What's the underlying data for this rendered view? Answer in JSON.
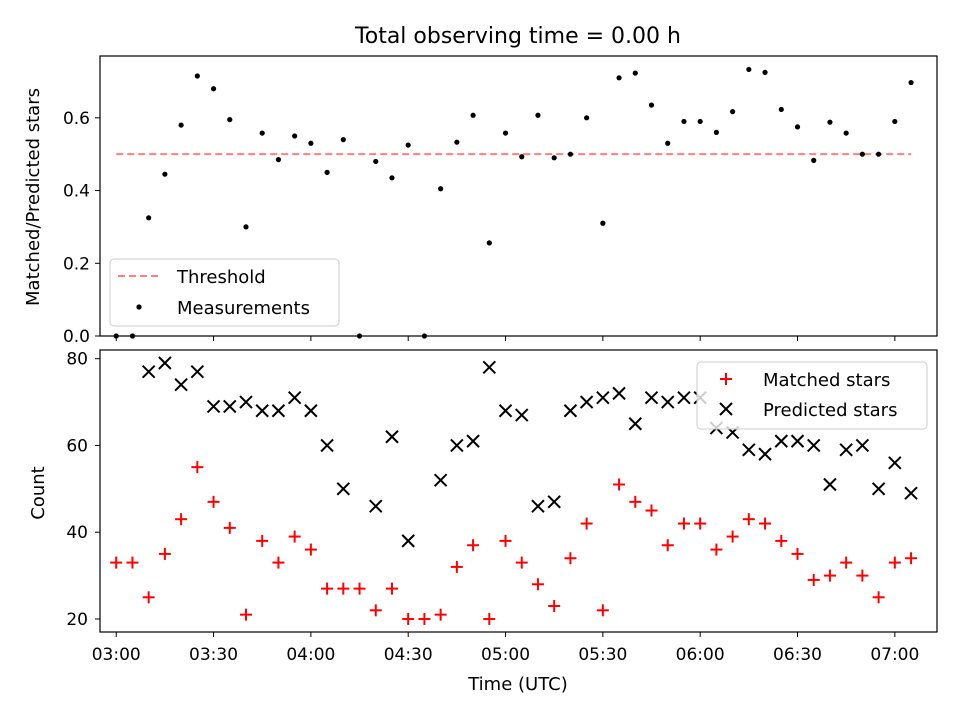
{
  "chart_data": [
    {
      "type": "scatter",
      "title": "Total observing time = 0.00 h",
      "xlabel": "",
      "ylabel": "Matched/Predicted stars",
      "xlim": [
        "02:55",
        "07:13"
      ],
      "ylim": [
        0,
        0.77
      ],
      "yticks": [
        0.0,
        0.2,
        0.4,
        0.6
      ],
      "ytick_labels": [
        "0.0",
        "0.2",
        "0.4",
        "0.6"
      ],
      "grid": false,
      "legend_position": "lower left",
      "threshold": {
        "name": "Threshold",
        "value": 0.5,
        "x_range": [
          "03:00",
          "07:05"
        ],
        "color": "#ff7f7f",
        "style": "dashed"
      },
      "series": [
        {
          "name": "Measurements",
          "marker": "dot",
          "color": "#000000",
          "x": [
            "03:00",
            "03:05",
            "03:10",
            "03:15",
            "03:20",
            "03:25",
            "03:30",
            "03:35",
            "03:40",
            "03:45",
            "03:50",
            "03:55",
            "04:00",
            "04:05",
            "04:10",
            "04:15",
            "04:20",
            "04:25",
            "04:30",
            "04:35",
            "04:40",
            "04:45",
            "04:50",
            "04:55",
            "05:00",
            "05:05",
            "05:10",
            "05:15",
            "05:20",
            "05:25",
            "05:30",
            "05:35",
            "05:40",
            "05:45",
            "05:50",
            "05:55",
            "06:00",
            "06:05",
            "06:10",
            "06:15",
            "06:20",
            "06:25",
            "06:30",
            "06:35",
            "06:40",
            "06:45",
            "06:50",
            "06:55",
            "07:00",
            "07:05"
          ],
          "y": [
            0.0,
            0.0,
            0.325,
            0.445,
            0.58,
            0.715,
            0.68,
            0.595,
            0.3,
            0.558,
            0.485,
            0.55,
            0.53,
            0.45,
            0.54,
            0.0,
            0.48,
            0.435,
            0.525,
            0.0,
            0.405,
            0.533,
            0.607,
            0.256,
            0.558,
            0.493,
            0.607,
            0.49,
            0.5,
            0.6,
            0.31,
            0.71,
            0.723,
            0.635,
            0.53,
            0.59,
            0.59,
            0.56,
            0.617,
            0.733,
            0.725,
            0.623,
            0.575,
            0.483,
            0.588,
            0.558,
            0.5,
            0.5,
            0.59,
            0.697
          ]
        }
      ]
    },
    {
      "type": "scatter",
      "title": "",
      "xlabel": "Time (UTC)",
      "ylabel": "Count",
      "xlim": [
        "02:55",
        "07:13"
      ],
      "ylim": [
        17,
        82
      ],
      "yticks": [
        20,
        40,
        60,
        80
      ],
      "ytick_labels": [
        "20",
        "40",
        "60",
        "80"
      ],
      "xticks": [
        "03:00",
        "03:30",
        "04:00",
        "04:30",
        "05:00",
        "05:30",
        "06:00",
        "06:30",
        "07:00"
      ],
      "xtick_labels": [
        "03:00",
        "03:30",
        "04:00",
        "04:30",
        "05:00",
        "05:30",
        "06:00",
        "06:30",
        "07:00"
      ],
      "grid": false,
      "legend_position": "upper right",
      "series": [
        {
          "name": "Matched stars",
          "marker": "plus",
          "color": "#ff0000",
          "x": [
            "03:00",
            "03:05",
            "03:10",
            "03:15",
            "03:20",
            "03:25",
            "03:30",
            "03:35",
            "03:40",
            "03:45",
            "03:50",
            "03:55",
            "04:00",
            "04:05",
            "04:10",
            "04:15",
            "04:20",
            "04:25",
            "04:30",
            "04:35",
            "04:40",
            "04:45",
            "04:50",
            "04:55",
            "05:00",
            "05:05",
            "05:10",
            "05:15",
            "05:20",
            "05:25",
            "05:30",
            "05:35",
            "05:40",
            "05:45",
            "05:50",
            "05:55",
            "06:00",
            "06:05",
            "06:10",
            "06:15",
            "06:20",
            "06:25",
            "06:30",
            "06:35",
            "06:40",
            "06:45",
            "06:50",
            "06:55",
            "07:00",
            "07:05"
          ],
          "y": [
            33,
            33,
            25,
            35,
            43,
            55,
            47,
            41,
            21,
            38,
            33,
            39,
            36,
            27,
            27,
            27,
            22,
            27,
            20,
            20,
            21,
            32,
            37,
            20,
            38,
            33,
            28,
            23,
            34,
            42,
            22,
            51,
            47,
            45,
            37,
            42,
            42,
            36,
            39,
            43,
            42,
            38,
            35,
            29,
            30,
            33,
            30,
            25,
            33,
            34
          ]
        },
        {
          "name": "Predicted stars",
          "marker": "x",
          "color": "#000000",
          "x": [
            "03:10",
            "03:15",
            "03:20",
            "03:25",
            "03:30",
            "03:35",
            "03:40",
            "03:45",
            "03:50",
            "03:55",
            "04:00",
            "04:05",
            "04:10",
            "04:20",
            "04:25",
            "04:30",
            "04:40",
            "04:45",
            "04:50",
            "04:55",
            "05:00",
            "05:05",
            "05:10",
            "05:15",
            "05:20",
            "05:25",
            "05:30",
            "05:35",
            "05:40",
            "05:45",
            "05:50",
            "05:55",
            "06:00",
            "06:05",
            "06:10",
            "06:15",
            "06:20",
            "06:25",
            "06:30",
            "06:35",
            "06:40",
            "06:45",
            "06:50",
            "06:55",
            "07:00",
            "07:05"
          ],
          "y": [
            77,
            79,
            74,
            77,
            69,
            69,
            70,
            68,
            68,
            71,
            68,
            60,
            50,
            46,
            62,
            38,
            52,
            60,
            61,
            78,
            68,
            67,
            46,
            47,
            68,
            70,
            71,
            72,
            65,
            71,
            70,
            71,
            71,
            64,
            63,
            59,
            58,
            61,
            61,
            60,
            51,
            59,
            60,
            50,
            56,
            49
          ]
        }
      ]
    }
  ]
}
